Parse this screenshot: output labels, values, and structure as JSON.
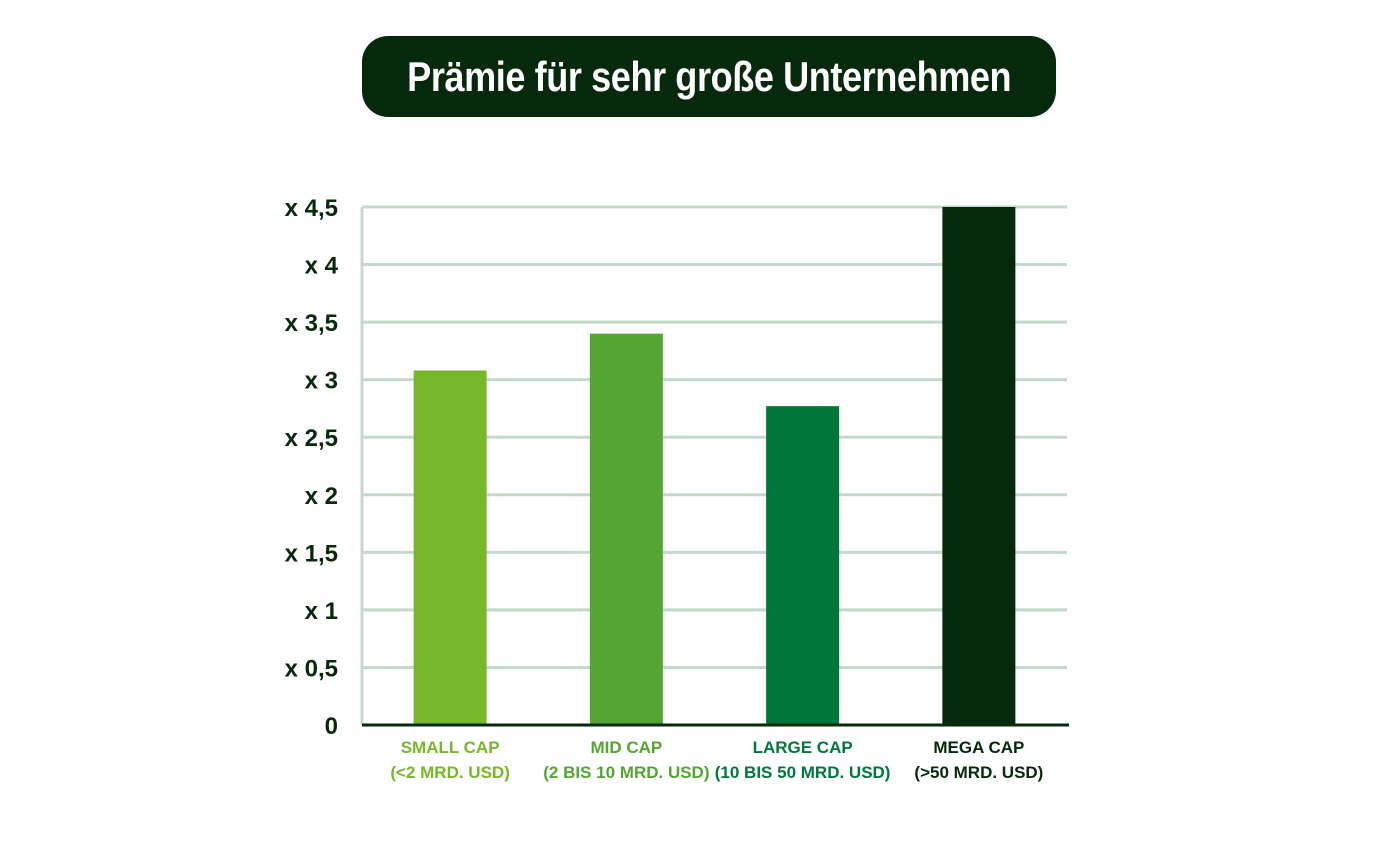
{
  "chart_data": {
    "type": "bar",
    "title": "Prämie für sehr große Unternehmen",
    "categories": [
      {
        "line1": "SMALL CAP",
        "line2": "(<2 MRD. USD)"
      },
      {
        "line1": "MID CAP",
        "line2": "(2 BIS 10 MRD. USD)"
      },
      {
        "line1": "LARGE CAP",
        "line2": "(10 BIS 50 MRD. USD)"
      },
      {
        "line1": "MEGA CAP",
        "line2": "(>50 MRD. USD)"
      }
    ],
    "values": [
      3.08,
      3.4,
      2.77,
      4.5
    ],
    "colors": [
      "#76b82a",
      "#55a535",
      "#00773a",
      "#06280c"
    ],
    "ylim": [
      0,
      4.5
    ],
    "yticks": [
      {
        "value": 0,
        "label": "0"
      },
      {
        "value": 0.5,
        "label": "x 0,5"
      },
      {
        "value": 1,
        "label": "x 1"
      },
      {
        "value": 1.5,
        "label": "x 1,5"
      },
      {
        "value": 2,
        "label": "x 2"
      },
      {
        "value": 2.5,
        "label": "x 2,5"
      },
      {
        "value": 3,
        "label": "x 3"
      },
      {
        "value": 3.5,
        "label": "x 3,5"
      },
      {
        "value": 4,
        "label": "x 4"
      },
      {
        "value": 4.5,
        "label": "x 4,5"
      }
    ],
    "grid": true,
    "legend": "none",
    "xlabel": "",
    "ylabel": ""
  }
}
